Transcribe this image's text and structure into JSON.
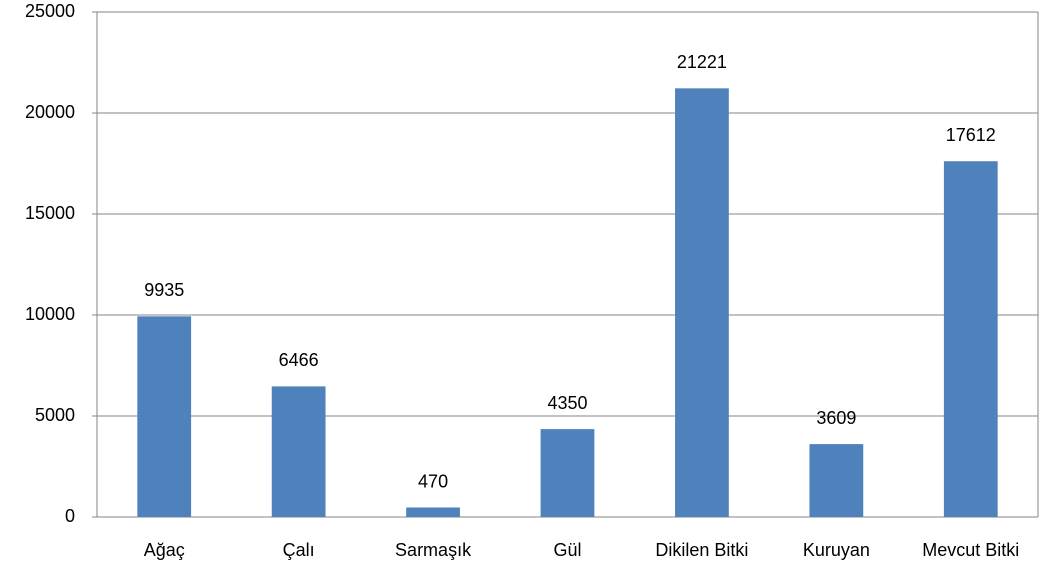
{
  "chart_data": {
    "type": "bar",
    "categories": [
      "Ağaç",
      "Çalı",
      "Sarmaşık",
      "Gül",
      "Dikilen Bitki",
      "Kuruyan",
      "Mevcut Bitki"
    ],
    "values": [
      9935,
      6466,
      470,
      4350,
      21221,
      3609,
      17612
    ],
    "color": "#4f81bd",
    "ylim": [
      0,
      25000
    ],
    "yticks": [
      0,
      5000,
      10000,
      15000,
      20000,
      25000
    ],
    "grid": true
  }
}
